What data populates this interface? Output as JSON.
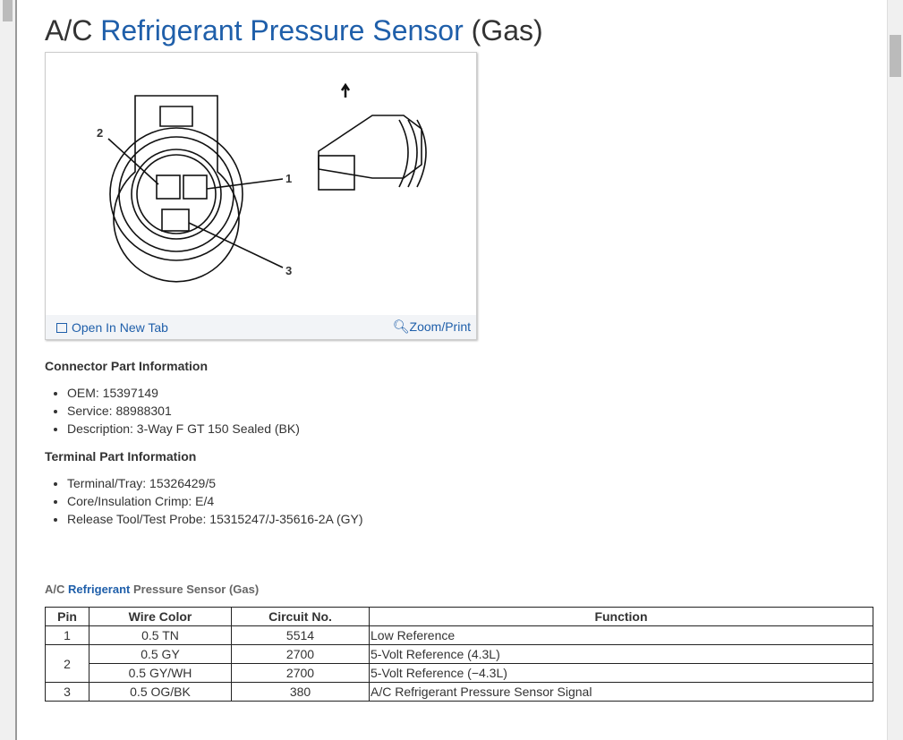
{
  "title": {
    "prefix": "A/C",
    "highlight": "Refrigerant Pressure Sensor",
    "suffix": "(Gas)"
  },
  "figure": {
    "pin_labels": [
      "1",
      "2",
      "3"
    ],
    "open_new_tab": "Open In New Tab",
    "zoom_print": "Zoom/Print"
  },
  "connector": {
    "heading": "Connector Part Information",
    "items": [
      "OEM: 15397149",
      "Service: 88988301",
      "Description: 3-Way F GT 150 Sealed (BK)"
    ]
  },
  "terminal": {
    "heading": "Terminal Part Information",
    "items": [
      "Terminal/Tray: 15326429/5",
      "Core/Insulation Crimp: E/4",
      "Release Tool/Test Probe: 15315247/J-35616-2A (GY)"
    ]
  },
  "table": {
    "title": {
      "prefix": "A/C",
      "highlight": "Refrigerant",
      "suffix": "Pressure Sensor (Gas)"
    },
    "headers": [
      "Pin",
      "Wire Color",
      "Circuit No.",
      "Function"
    ],
    "rows": [
      {
        "pin": "1",
        "wire": "0.5 TN",
        "circuit": "5514",
        "function": "Low Reference"
      },
      {
        "pin": "2",
        "wire": "0.5 GY",
        "circuit": "2700",
        "function": "5-Volt Reference (4.3L)"
      },
      {
        "pin": "",
        "wire": "0.5 GY/WH",
        "circuit": "2700",
        "function": "5-Volt Reference (−4.3L)"
      },
      {
        "pin": "3",
        "wire": "0.5 OG/BK",
        "circuit": "380",
        "function": "A/C Refrigerant Pressure Sensor Signal"
      }
    ]
  }
}
